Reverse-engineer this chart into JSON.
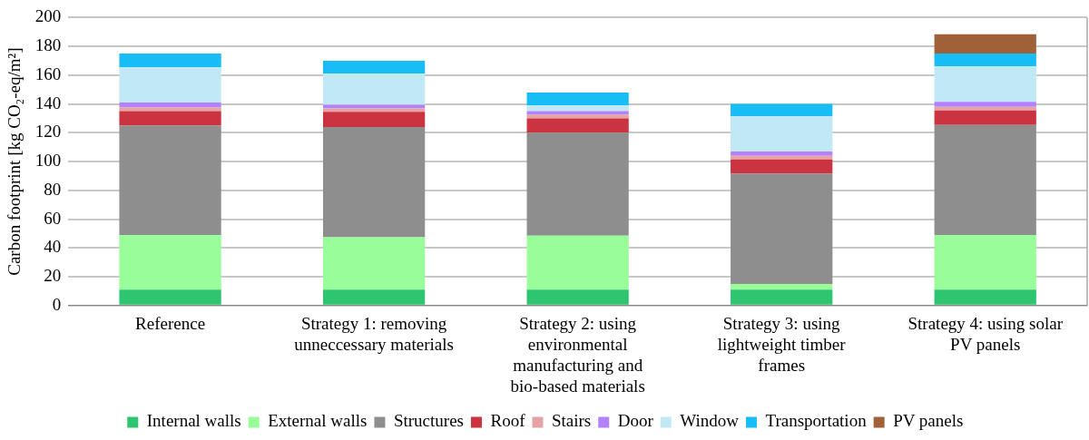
{
  "chart_data": {
    "type": "bar",
    "stacked": true,
    "ylabel": "Carbon footprint [kg CO₂-eq/m²]",
    "categories": [
      "Reference",
      "Strategy 1: removing unneccessary materials",
      "Strategy 2: using environmental manufacturing and bio-based materials",
      "Strategy 3: using lightweight timber frames",
      "Strategy 4: using solar PV panels"
    ],
    "series": [
      {
        "name": "Internal walls",
        "color": "#2ec571",
        "values": [
          11,
          11,
          11,
          11,
          11
        ]
      },
      {
        "name": "External walls",
        "color": "#99fd99",
        "values": [
          38,
          36.5,
          37.5,
          4,
          38
        ]
      },
      {
        "name": "Structures",
        "color": "#8e8e8e",
        "values": [
          76,
          76.5,
          71.5,
          76.5,
          76.5
        ]
      },
      {
        "name": "Roof",
        "color": "#cc3340",
        "values": [
          10,
          10.5,
          10,
          10,
          10
        ]
      },
      {
        "name": "Stairs",
        "color": "#e6a3a3",
        "values": [
          2.5,
          2.5,
          2.5,
          2.5,
          2.5
        ]
      },
      {
        "name": "Door",
        "color": "#b380ff",
        "values": [
          3.5,
          2.5,
          2.5,
          3,
          3.5
        ]
      },
      {
        "name": "Window",
        "color": "#c0e8f5",
        "values": [
          24.5,
          21.5,
          4,
          24.5,
          24.5
        ]
      },
      {
        "name": "Transportation",
        "color": "#18bdf5",
        "values": [
          9.5,
          9,
          9,
          8.5,
          9
        ]
      },
      {
        "name": "PV panels",
        "color": "#a06038",
        "values": [
          null,
          null,
          null,
          null,
          13.5
        ]
      }
    ],
    "ylim": [
      0,
      200
    ],
    "yticks": [
      0,
      20,
      40,
      60,
      80,
      100,
      120,
      140,
      160,
      180,
      200
    ],
    "grid": "y",
    "legend": "bottom"
  }
}
